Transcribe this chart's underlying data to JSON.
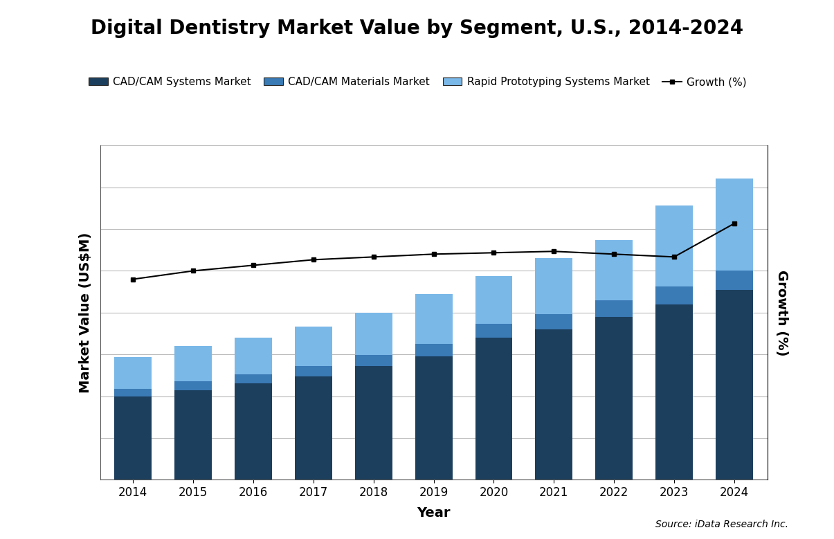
{
  "title": "Digital Dentistry Market Value by Segment, U.S., 2014-2024",
  "xlabel": "Year",
  "ylabel_left": "Market Value (US$M)",
  "ylabel_right": "Growth (%)",
  "source": "Source: iData Research Inc.",
  "years": [
    2014,
    2015,
    2016,
    2017,
    2018,
    2019,
    2020,
    2021,
    2022,
    2023,
    2024
  ],
  "cadcam_systems": [
    200,
    215,
    230,
    248,
    272,
    295,
    340,
    360,
    390,
    420,
    455
  ],
  "cadcam_materials": [
    18,
    20,
    22,
    24,
    27,
    30,
    33,
    36,
    39,
    42,
    46
  ],
  "rapid_proto": [
    75,
    85,
    88,
    95,
    100,
    120,
    115,
    135,
    145,
    195,
    220
  ],
  "growth_values": [
    7.2,
    7.5,
    7.7,
    7.9,
    8.0,
    8.1,
    8.15,
    8.2,
    8.1,
    8.0,
    9.2
  ],
  "growth_ylim": [
    0,
    12
  ],
  "color_systems": "#1c3f5e",
  "color_materials": "#3a7ab5",
  "color_rapid": "#7ab8e8",
  "color_growth_line": "#000000",
  "bar_width": 0.62,
  "ylim_left": [
    0,
    800
  ],
  "background_color": "#ffffff",
  "grid_color": "#bbbbbb",
  "title_fontsize": 20,
  "axis_label_fontsize": 14,
  "tick_fontsize": 12,
  "legend_fontsize": 11,
  "n_gridlines": 9
}
